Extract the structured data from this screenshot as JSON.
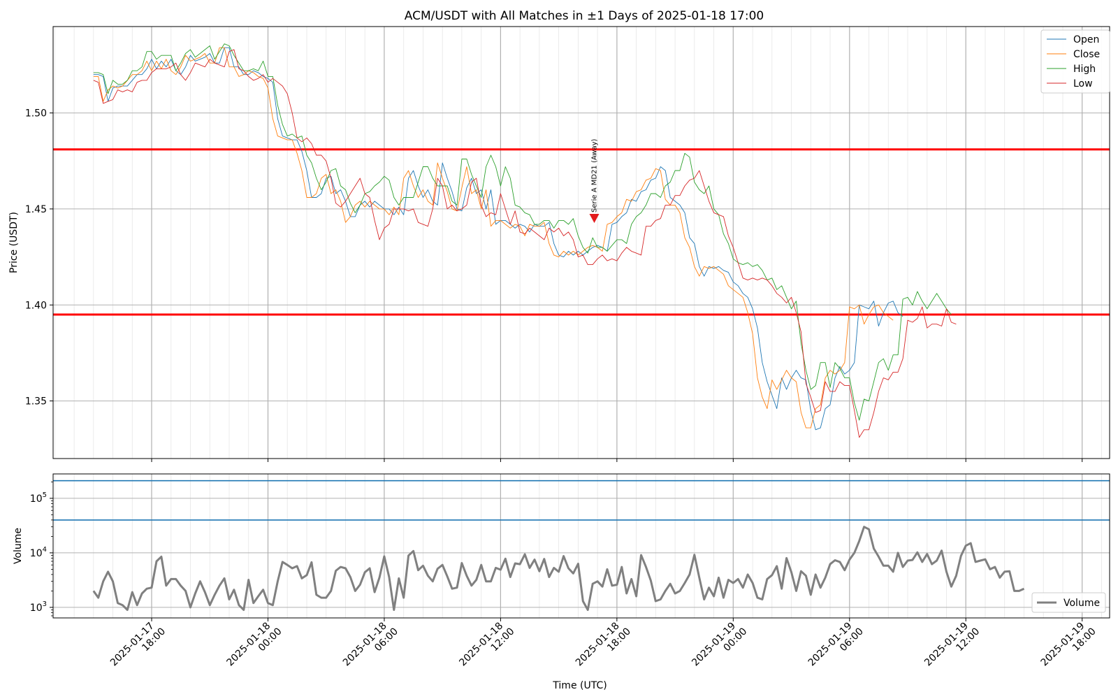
{
  "chart_data": [
    {
      "type": "line",
      "title": "ACM/USDT with All Matches in ±1 Days of 2025-01-18 17:00",
      "xlabel": "Time (UTC)",
      "ylabel": "Price (USDT)",
      "ylim": [
        1.32,
        1.545
      ],
      "yticks": [
        "1.35",
        "1.40",
        "1.45",
        "1.50"
      ],
      "xticks": [
        [
          "2025-01-17",
          "18:00"
        ],
        [
          "2025-01-18",
          "00:00"
        ],
        [
          "2025-01-18",
          "06:00"
        ],
        [
          "2025-01-18",
          "12:00"
        ],
        [
          "2025-01-18",
          "18:00"
        ],
        [
          "2025-01-19",
          "00:00"
        ],
        [
          "2025-01-19",
          "06:00"
        ],
        [
          "2025-01-19",
          "12:00"
        ],
        [
          "2025-01-19",
          "18:00"
        ]
      ],
      "x_range": [
        "2025-01-17 12:55",
        "2025-01-19 19:25"
      ],
      "grid": true,
      "legend_placement": "top-right",
      "x_start": "2025-01-17 15:00",
      "x_step_minutes": 15,
      "series": [
        {
          "name": "Open",
          "color": "#1f77b4",
          "values": [
            1.52,
            1.52,
            1.519,
            1.506,
            1.513,
            1.514,
            1.514,
            1.514,
            1.517,
            1.52,
            1.52,
            1.523,
            1.528,
            1.523,
            1.527,
            1.524,
            1.528,
            1.522,
            1.52,
            1.524,
            1.53,
            1.527,
            1.528,
            1.529,
            1.531,
            1.526,
            1.526,
            1.534,
            1.534,
            1.524,
            1.524,
            1.52,
            1.52,
            1.522,
            1.521,
            1.519,
            1.518,
            1.516,
            1.497,
            1.488,
            1.487,
            1.486,
            1.486,
            1.48,
            1.47,
            1.456,
            1.456,
            1.458,
            1.466,
            1.467,
            1.458,
            1.46,
            1.454,
            1.446,
            1.446,
            1.452,
            1.454,
            1.451,
            1.454,
            1.452,
            1.45,
            1.45,
            1.447,
            1.451,
            1.447,
            1.466,
            1.47,
            1.462,
            1.456,
            1.46,
            1.454,
            1.452,
            1.474,
            1.466,
            1.459,
            1.45,
            1.449,
            1.461,
            1.466,
            1.458,
            1.46,
            1.45,
            1.46,
            1.442,
            1.444,
            1.444,
            1.442,
            1.44,
            1.442,
            1.441,
            1.438,
            1.442,
            1.441,
            1.441,
            1.443,
            1.432,
            1.426,
            1.425,
            1.428,
            1.426,
            1.428,
            1.426,
            1.428,
            1.43,
            1.431,
            1.43,
            1.428,
            1.442,
            1.443,
            1.446,
            1.448,
            1.455,
            1.454,
            1.459,
            1.46,
            1.465,
            1.466,
            1.472,
            1.47,
            1.456,
            1.454,
            1.452,
            1.448,
            1.435,
            1.432,
            1.42,
            1.415,
            1.42,
            1.419,
            1.42,
            1.418,
            1.417,
            1.412,
            1.41,
            1.406,
            1.404,
            1.398,
            1.388,
            1.37,
            1.36,
            1.353,
            1.346,
            1.362,
            1.356,
            1.362,
            1.366,
            1.362,
            1.361,
            1.345,
            1.335,
            1.336,
            1.346,
            1.348,
            1.362,
            1.368,
            1.364,
            1.366,
            1.37,
            1.4,
            1.399,
            1.398,
            1.402,
            1.389,
            1.396,
            1.401,
            1.402,
            1.396,
            1.394
          ]
        },
        {
          "name": "Close",
          "color": "#ff7f0e",
          "values": [
            1.519,
            1.519,
            1.506,
            1.512,
            1.514,
            1.513,
            1.514,
            1.517,
            1.52,
            1.52,
            1.522,
            1.527,
            1.522,
            1.527,
            1.523,
            1.528,
            1.522,
            1.52,
            1.524,
            1.53,
            1.527,
            1.528,
            1.529,
            1.531,
            1.526,
            1.526,
            1.534,
            1.534,
            1.524,
            1.524,
            1.519,
            1.52,
            1.522,
            1.521,
            1.519,
            1.518,
            1.513,
            1.497,
            1.488,
            1.487,
            1.486,
            1.486,
            1.479,
            1.47,
            1.456,
            1.456,
            1.458,
            1.466,
            1.468,
            1.458,
            1.46,
            1.454,
            1.443,
            1.446,
            1.452,
            1.454,
            1.451,
            1.454,
            1.452,
            1.45,
            1.45,
            1.447,
            1.451,
            1.447,
            1.466,
            1.47,
            1.462,
            1.456,
            1.46,
            1.454,
            1.452,
            1.474,
            1.466,
            1.459,
            1.45,
            1.449,
            1.461,
            1.472,
            1.458,
            1.46,
            1.45,
            1.46,
            1.441,
            1.444,
            1.444,
            1.442,
            1.44,
            1.442,
            1.441,
            1.436,
            1.442,
            1.441,
            1.441,
            1.443,
            1.432,
            1.426,
            1.425,
            1.428,
            1.426,
            1.428,
            1.426,
            1.428,
            1.43,
            1.431,
            1.43,
            1.428,
            1.442,
            1.443,
            1.446,
            1.448,
            1.455,
            1.454,
            1.459,
            1.46,
            1.465,
            1.466,
            1.471,
            1.47,
            1.455,
            1.452,
            1.452,
            1.448,
            1.435,
            1.43,
            1.42,
            1.415,
            1.42,
            1.419,
            1.42,
            1.418,
            1.416,
            1.41,
            1.408,
            1.406,
            1.404,
            1.396,
            1.385,
            1.362,
            1.352,
            1.346,
            1.361,
            1.356,
            1.361,
            1.366,
            1.362,
            1.36,
            1.344,
            1.336,
            1.336,
            1.346,
            1.348,
            1.362,
            1.366,
            1.364,
            1.366,
            1.37,
            1.399,
            1.398,
            1.4,
            1.39,
            1.395,
            1.399,
            1.4,
            1.396,
            1.394,
            1.392
          ]
        },
        {
          "name": "High",
          "color": "#2ca02c",
          "values": [
            1.521,
            1.521,
            1.52,
            1.51,
            1.517,
            1.515,
            1.515,
            1.517,
            1.522,
            1.522,
            1.524,
            1.532,
            1.532,
            1.528,
            1.53,
            1.53,
            1.53,
            1.522,
            1.526,
            1.531,
            1.533,
            1.529,
            1.531,
            1.533,
            1.535,
            1.528,
            1.532,
            1.536,
            1.535,
            1.53,
            1.526,
            1.522,
            1.522,
            1.523,
            1.522,
            1.527,
            1.519,
            1.519,
            1.504,
            1.494,
            1.488,
            1.489,
            1.487,
            1.488,
            1.478,
            1.474,
            1.466,
            1.46,
            1.464,
            1.47,
            1.471,
            1.462,
            1.46,
            1.453,
            1.448,
            1.452,
            1.458,
            1.459,
            1.462,
            1.464,
            1.467,
            1.465,
            1.456,
            1.452,
            1.456,
            1.456,
            1.456,
            1.464,
            1.472,
            1.472,
            1.466,
            1.462,
            1.462,
            1.462,
            1.454,
            1.452,
            1.476,
            1.476,
            1.468,
            1.462,
            1.456,
            1.472,
            1.478,
            1.472,
            1.462,
            1.472,
            1.466,
            1.452,
            1.451,
            1.448,
            1.447,
            1.442,
            1.442,
            1.444,
            1.444,
            1.44,
            1.444,
            1.444,
            1.442,
            1.445,
            1.436,
            1.43,
            1.427,
            1.435,
            1.43,
            1.43,
            1.428,
            1.431,
            1.434,
            1.434,
            1.432,
            1.442,
            1.446,
            1.448,
            1.452,
            1.458,
            1.458,
            1.456,
            1.462,
            1.464,
            1.47,
            1.47,
            1.479,
            1.477,
            1.464,
            1.46,
            1.458,
            1.462,
            1.45,
            1.447,
            1.437,
            1.432,
            1.424,
            1.422,
            1.421,
            1.422,
            1.42,
            1.421,
            1.418,
            1.413,
            1.414,
            1.408,
            1.41,
            1.404,
            1.398,
            1.402,
            1.38,
            1.366,
            1.356,
            1.358,
            1.37,
            1.37,
            1.357,
            1.37,
            1.367,
            1.362,
            1.362,
            1.349,
            1.34,
            1.351,
            1.35,
            1.36,
            1.37,
            1.372,
            1.366,
            1.374,
            1.374,
            1.403,
            1.404,
            1.4,
            1.407,
            1.402,
            1.398,
            1.402,
            1.406,
            1.402,
            1.398,
            1.395
          ]
        },
        {
          "name": "Low",
          "color": "#d62728",
          "values": [
            1.517,
            1.516,
            1.505,
            1.506,
            1.507,
            1.512,
            1.511,
            1.512,
            1.511,
            1.516,
            1.517,
            1.517,
            1.521,
            1.523,
            1.523,
            1.523,
            1.524,
            1.526,
            1.52,
            1.517,
            1.521,
            1.526,
            1.525,
            1.524,
            1.528,
            1.526,
            1.525,
            1.524,
            1.532,
            1.533,
            1.523,
            1.522,
            1.519,
            1.517,
            1.518,
            1.52,
            1.516,
            1.518,
            1.516,
            1.514,
            1.51,
            1.5,
            1.487,
            1.485,
            1.487,
            1.484,
            1.478,
            1.478,
            1.475,
            1.466,
            1.453,
            1.451,
            1.454,
            1.458,
            1.462,
            1.466,
            1.458,
            1.456,
            1.444,
            1.434,
            1.44,
            1.442,
            1.45,
            1.45,
            1.45,
            1.449,
            1.45,
            1.443,
            1.442,
            1.441,
            1.45,
            1.466,
            1.462,
            1.45,
            1.452,
            1.449,
            1.45,
            1.452,
            1.464,
            1.466,
            1.452,
            1.446,
            1.448,
            1.447,
            1.458,
            1.45,
            1.442,
            1.449,
            1.438,
            1.437,
            1.44,
            1.438,
            1.436,
            1.434,
            1.44,
            1.438,
            1.44,
            1.436,
            1.438,
            1.434,
            1.425,
            1.426,
            1.421,
            1.421,
            1.424,
            1.426,
            1.423,
            1.424,
            1.423,
            1.427,
            1.43,
            1.428,
            1.427,
            1.426,
            1.441,
            1.441,
            1.444,
            1.445,
            1.452,
            1.452,
            1.457,
            1.457,
            1.462,
            1.465,
            1.466,
            1.47,
            1.462,
            1.454,
            1.448,
            1.447,
            1.446,
            1.436,
            1.43,
            1.422,
            1.414,
            1.413,
            1.414,
            1.413,
            1.414,
            1.413,
            1.41,
            1.406,
            1.404,
            1.401,
            1.404,
            1.396,
            1.386,
            1.359,
            1.352,
            1.344,
            1.345,
            1.36,
            1.355,
            1.355,
            1.36,
            1.358,
            1.358,
            1.345,
            1.331,
            1.335,
            1.335,
            1.344,
            1.355,
            1.362,
            1.361,
            1.365,
            1.365,
            1.372,
            1.392,
            1.391,
            1.393,
            1.399,
            1.388,
            1.39,
            1.39,
            1.389,
            1.398,
            1.391,
            1.39
          ]
        }
      ],
      "horizontal_lines": [
        {
          "value": 1.481,
          "color": "#ff0000"
        },
        {
          "value": 1.395,
          "color": "#ff0000"
        }
      ],
      "annotation": {
        "text": "Serie A MD21 (Away)",
        "x": "2025-01-18 16:50",
        "y": 1.4445,
        "marker": "triangle-down",
        "color": "#e31a1c"
      }
    },
    {
      "type": "line",
      "ylabel": "Volume",
      "yscale": "log",
      "ylim": [
        640,
        280000
      ],
      "yticks": [
        {
          "base": "10",
          "exp": "3"
        },
        {
          "base": "10",
          "exp": "4"
        },
        {
          "base": "10",
          "exp": "5"
        }
      ],
      "grid": true,
      "legend_placement": "bottom-right",
      "series": [
        {
          "name": "Volume",
          "color": "#808080",
          "values": [
            2000,
            1500,
            3000,
            4500,
            3000,
            1200,
            1100,
            900,
            1900,
            1100,
            1800,
            2200,
            2300,
            7000,
            8500,
            2500,
            3300,
            3300,
            2500,
            2000,
            1000,
            1800,
            3000,
            1900,
            1100,
            1700,
            2500,
            3400,
            1400,
            2100,
            1100,
            900,
            3200,
            1200,
            1600,
            2100,
            1200,
            1100,
            3000,
            6800,
            6000,
            5200,
            5700,
            3400,
            3900,
            6700,
            1700,
            1500,
            1500,
            2000,
            4700,
            5500,
            5200,
            3600,
            2000,
            2600,
            4400,
            5200,
            1900,
            3500,
            8600,
            3600,
            900,
            3400,
            1500,
            8900,
            10800,
            4800,
            5800,
            3800,
            3000,
            5100,
            6000,
            3700,
            2200,
            2300,
            6500,
            3800,
            2500,
            3200,
            6000,
            3000,
            3000,
            5300,
            4900,
            7800,
            3600,
            6400,
            6200,
            9400,
            5300,
            7500,
            4600,
            7700,
            3600,
            5300,
            4500,
            8700,
            5200,
            4200,
            6300,
            1300,
            900,
            2700,
            3000,
            2400,
            5000,
            2500,
            2600,
            5500,
            1800,
            3300,
            1600,
            9100,
            5500,
            3100,
            1300,
            1400,
            2000,
            2700,
            1800,
            2000,
            2800,
            4000,
            9200,
            3500,
            1400,
            2300,
            1600,
            3500,
            1500,
            3200,
            2800,
            3300,
            2300,
            4000,
            2800,
            1500,
            1400,
            3300,
            3900,
            5700,
            2200,
            8000,
            4400,
            2000,
            4600,
            3800,
            1700,
            4000,
            2300,
            3500,
            6200,
            7300,
            6800,
            4800,
            7500,
            10000,
            16500,
            30000,
            27000,
            12000,
            8500,
            5800,
            5800,
            4500,
            10000,
            5500,
            7200,
            7400,
            10200,
            6800,
            9500,
            6200,
            7200,
            11000,
            4500,
            2400,
            3800,
            8800,
            13500,
            15000,
            6800,
            7200,
            7600,
            5000,
            5500,
            3500,
            4500,
            4600,
            2000,
            2000,
            2200
          ]
        }
      ],
      "horizontal_lines": [
        {
          "value": 210000,
          "color": "#1f77b4"
        },
        {
          "value": 40000,
          "color": "#1f77b4"
        }
      ]
    }
  ]
}
